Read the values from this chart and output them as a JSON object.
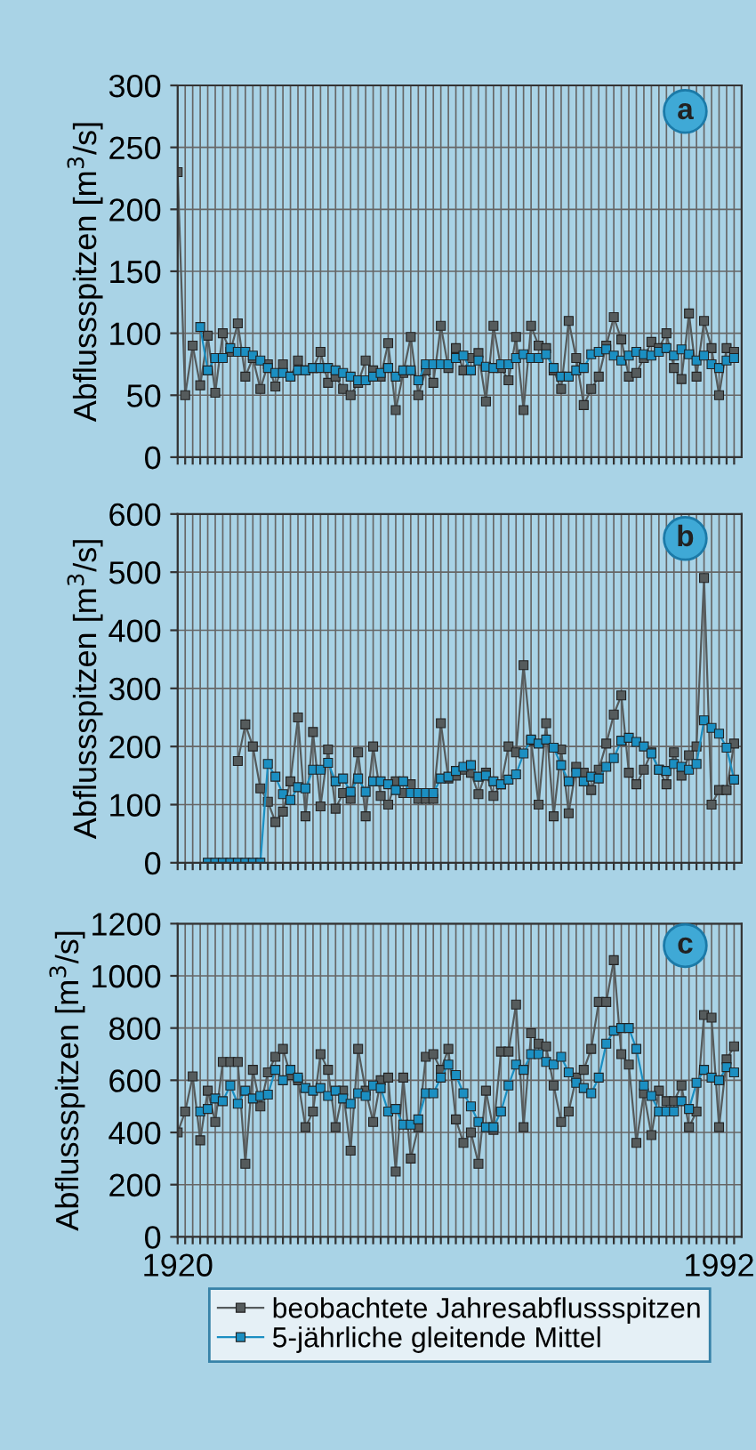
{
  "chart_data": [
    {
      "type": "line",
      "annotations": [
        "a"
      ],
      "ylabel": "Abflussspitzen [m$^{3}$/s]",
      "marker": "square",
      "grid": true,
      "tick_labels": "y",
      "legend": false,
      "xlim": [
        1920,
        1995
      ],
      "xticks": [
        1920,
        1921,
        1922,
        1923,
        1924,
        1925,
        1926,
        1927,
        1928,
        1929,
        1930,
        1931,
        1932,
        1933,
        1934,
        1935,
        1936,
        1937,
        1938,
        1939,
        1940,
        1941,
        1942,
        1943,
        1944,
        1945,
        1946,
        1947,
        1948,
        1949,
        1950,
        1951,
        1952,
        1953,
        1954,
        1955,
        1956,
        1957,
        1958,
        1959,
        1960,
        1961,
        1962,
        1963,
        1964,
        1965,
        1966,
        1967,
        1968,
        1969,
        1970,
        1971,
        1972,
        1973,
        1974,
        1975,
        1976,
        1977,
        1978,
        1979,
        1980,
        1981,
        1982,
        1983,
        1984,
        1985,
        1986,
        1987,
        1988,
        1989,
        1990,
        1991,
        1992,
        1993,
        1994
      ],
      "ylim": [
        0,
        300
      ],
      "yticks": [
        0,
        50,
        100,
        150,
        200,
        250,
        300
      ],
      "series": [
        {
          "color": "#555b5c",
          "x": [
            1920,
            1921,
            1922,
            1923,
            1924,
            1925,
            1926,
            1927,
            1928,
            1929,
            1930,
            1931,
            1932,
            1933,
            1934,
            1935,
            1936,
            1937,
            1938,
            1939,
            1940,
            1941,
            1942,
            1943,
            1944,
            1945,
            1946,
            1947,
            1948,
            1949,
            1950,
            1951,
            1952,
            1953,
            1954,
            1955,
            1956,
            1957,
            1958,
            1959,
            1960,
            1961,
            1962,
            1963,
            1964,
            1965,
            1966,
            1967,
            1968,
            1969,
            1970,
            1971,
            1972,
            1973,
            1974,
            1975,
            1976,
            1977,
            1978,
            1979,
            1980,
            1981,
            1982,
            1983,
            1984,
            1985,
            1986,
            1987,
            1988,
            1989,
            1990,
            1991,
            1992,
            1993,
            1994
          ],
          "values": [
            230,
            50,
            90,
            58,
            98,
            52,
            100,
            85,
            108,
            65,
            80,
            55,
            75,
            57,
            75,
            65,
            78,
            70,
            72,
            85,
            60,
            65,
            55,
            50,
            60,
            78,
            70,
            65,
            92,
            38,
            68,
            97,
            50,
            70,
            60,
            106,
            72,
            88,
            70,
            80,
            84,
            45,
            106,
            72,
            62,
            97,
            38,
            106,
            90,
            88,
            70,
            55,
            110,
            80,
            42,
            55,
            65,
            90,
            113,
            95,
            65,
            68,
            80,
            93,
            88,
            100,
            72,
            63,
            116,
            65,
            110,
            88,
            50,
            88,
            85
          ]
        },
        {
          "color": "#1b8fc2",
          "x": [
            1923,
            1924,
            1925,
            1926,
            1927,
            1928,
            1929,
            1930,
            1931,
            1932,
            1933,
            1934,
            1935,
            1936,
            1937,
            1938,
            1939,
            1940,
            1941,
            1942,
            1943,
            1944,
            1945,
            1946,
            1947,
            1948,
            1949,
            1950,
            1951,
            1952,
            1953,
            1954,
            1955,
            1956,
            1957,
            1958,
            1959,
            1960,
            1961,
            1962,
            1963,
            1964,
            1965,
            1966,
            1967,
            1968,
            1969,
            1970,
            1971,
            1972,
            1973,
            1974,
            1975,
            1976,
            1977,
            1978,
            1979,
            1980,
            1981,
            1982,
            1983,
            1984,
            1985,
            1986,
            1987,
            1988,
            1989,
            1990,
            1991,
            1992,
            1993,
            1994
          ],
          "values": [
            105,
            70,
            80,
            80,
            88,
            85,
            85,
            82,
            78,
            72,
            68,
            68,
            65,
            70,
            70,
            72,
            72,
            72,
            70,
            68,
            65,
            62,
            62,
            65,
            68,
            72,
            65,
            70,
            70,
            62,
            75,
            75,
            75,
            75,
            80,
            82,
            70,
            78,
            73,
            72,
            75,
            75,
            80,
            83,
            80,
            80,
            83,
            72,
            65,
            65,
            70,
            72,
            83,
            85,
            87,
            82,
            78,
            82,
            85,
            83,
            82,
            85,
            88,
            82,
            87,
            83,
            78,
            82,
            75,
            72,
            78,
            80
          ]
        }
      ]
    },
    {
      "type": "line",
      "annotations": [
        "b"
      ],
      "ylabel": "Abflussspitzen [m$^{3}$/s]",
      "marker": "square",
      "grid": true,
      "tick_labels": "y",
      "legend": false,
      "xlim": [
        1920,
        1995
      ],
      "xticks": [
        1920,
        1921,
        1922,
        1923,
        1924,
        1925,
        1926,
        1927,
        1928,
        1929,
        1930,
        1931,
        1932,
        1933,
        1934,
        1935,
        1936,
        1937,
        1938,
        1939,
        1940,
        1941,
        1942,
        1943,
        1944,
        1945,
        1946,
        1947,
        1948,
        1949,
        1950,
        1951,
        1952,
        1953,
        1954,
        1955,
        1956,
        1957,
        1958,
        1959,
        1960,
        1961,
        1962,
        1963,
        1964,
        1965,
        1966,
        1967,
        1968,
        1969,
        1970,
        1971,
        1972,
        1973,
        1974,
        1975,
        1976,
        1977,
        1978,
        1979,
        1980,
        1981,
        1982,
        1983,
        1984,
        1985,
        1986,
        1987,
        1988,
        1989,
        1990,
        1991,
        1992,
        1993,
        1994
      ],
      "ylim": [
        0,
        600
      ],
      "yticks": [
        0,
        100,
        200,
        300,
        400,
        500,
        600
      ],
      "series": [
        {
          "color": "#555b5c",
          "x": [
            1928,
            1929,
            1930,
            1931,
            1932,
            1933,
            1934,
            1935,
            1936,
            1937,
            1938,
            1939,
            1940,
            1941,
            1942,
            1943,
            1944,
            1945,
            1946,
            1947,
            1948,
            1949,
            1950,
            1951,
            1952,
            1953,
            1954,
            1955,
            1956,
            1957,
            1958,
            1959,
            1960,
            1961,
            1962,
            1963,
            1964,
            1965,
            1966,
            1967,
            1968,
            1969,
            1970,
            1971,
            1972,
            1973,
            1974,
            1975,
            1976,
            1977,
            1978,
            1979,
            1980,
            1981,
            1982,
            1983,
            1984,
            1985,
            1986,
            1987,
            1988,
            1989,
            1990,
            1991,
            1992,
            1993,
            1994
          ],
          "values": [
            175,
            238,
            200,
            128,
            105,
            70,
            88,
            140,
            250,
            80,
            225,
            97,
            195,
            93,
            120,
            110,
            190,
            80,
            200,
            115,
            100,
            140,
            120,
            135,
            110,
            110,
            110,
            240,
            145,
            150,
            160,
            155,
            118,
            155,
            115,
            135,
            200,
            190,
            340,
            210,
            100,
            240,
            80,
            195,
            85,
            165,
            155,
            125,
            160,
            205,
            255,
            288,
            155,
            135,
            160,
            190,
            160,
            135,
            190,
            150,
            185,
            200,
            490,
            100,
            125,
            125,
            205
          ]
        },
        {
          "color": "#1b8fc2",
          "x": [
            1924,
            1925,
            1926,
            1927,
            1928,
            1929,
            1930,
            1931,
            1932,
            1933,
            1934,
            1935,
            1936,
            1937,
            1938,
            1939,
            1940,
            1941,
            1942,
            1943,
            1944,
            1945,
            1946,
            1947,
            1948,
            1949,
            1950,
            1951,
            1952,
            1953,
            1954,
            1955,
            1956,
            1957,
            1958,
            1959,
            1960,
            1961,
            1962,
            1963,
            1964,
            1965,
            1966,
            1967,
            1968,
            1969,
            1970,
            1971,
            1972,
            1973,
            1974,
            1975,
            1976,
            1977,
            1978,
            1979,
            1980,
            1981,
            1982,
            1983,
            1984,
            1985,
            1986,
            1987,
            1988,
            1989,
            1990,
            1991,
            1992,
            1993,
            1994
          ],
          "values": [
            0,
            0,
            0,
            0,
            0,
            0,
            0,
            0,
            170,
            148,
            118,
            108,
            130,
            128,
            160,
            160,
            172,
            140,
            145,
            122,
            145,
            122,
            140,
            140,
            135,
            125,
            140,
            120,
            120,
            120,
            120,
            145,
            148,
            158,
            165,
            168,
            148,
            150,
            140,
            135,
            143,
            152,
            188,
            212,
            205,
            212,
            198,
            168,
            140,
            155,
            140,
            148,
            145,
            165,
            180,
            210,
            215,
            208,
            200,
            188,
            160,
            158,
            170,
            165,
            160,
            170,
            245,
            232,
            222,
            198,
            143
          ]
        }
      ]
    },
    {
      "type": "line",
      "annotations": [
        "c"
      ],
      "ylabel": "Abflussspitzen [m$^{3}$/s]",
      "marker": "square",
      "grid": true,
      "legend": "bottom",
      "xlim": [
        1920,
        1995
      ],
      "xticks": [
        1920,
        {
          "value": 1921,
          "label": null
        },
        {
          "value": 1922,
          "label": null
        },
        {
          "value": 1923,
          "label": null
        },
        {
          "value": 1924,
          "label": null
        },
        {
          "value": 1925,
          "label": null
        },
        {
          "value": 1926,
          "label": null
        },
        {
          "value": 1927,
          "label": null
        },
        {
          "value": 1928,
          "label": null
        },
        {
          "value": 1929,
          "label": null
        },
        {
          "value": 1930,
          "label": null
        },
        {
          "value": 1931,
          "label": null
        },
        {
          "value": 1932,
          "label": null
        },
        {
          "value": 1933,
          "label": null
        },
        {
          "value": 1934,
          "label": null
        },
        {
          "value": 1935,
          "label": null
        },
        {
          "value": 1936,
          "label": null
        },
        {
          "value": 1937,
          "label": null
        },
        {
          "value": 1938,
          "label": null
        },
        {
          "value": 1939,
          "label": null
        },
        {
          "value": 1940,
          "label": null
        },
        {
          "value": 1941,
          "label": null
        },
        {
          "value": 1942,
          "label": null
        },
        {
          "value": 1943,
          "label": null
        },
        {
          "value": 1944,
          "label": null
        },
        {
          "value": 1945,
          "label": null
        },
        {
          "value": 1946,
          "label": null
        },
        {
          "value": 1947,
          "label": null
        },
        {
          "value": 1948,
          "label": null
        },
        {
          "value": 1949,
          "label": null
        },
        {
          "value": 1950,
          "label": null
        },
        {
          "value": 1951,
          "label": null
        },
        {
          "value": 1952,
          "label": null
        },
        {
          "value": 1953,
          "label": null
        },
        {
          "value": 1954,
          "label": null
        },
        {
          "value": 1955,
          "label": null
        },
        {
          "value": 1956,
          "label": null
        },
        {
          "value": 1957,
          "label": null
        },
        {
          "value": 1958,
          "label": null
        },
        {
          "value": 1959,
          "label": null
        },
        {
          "value": 1960,
          "label": null
        },
        {
          "value": 1961,
          "label": null
        },
        {
          "value": 1962,
          "label": null
        },
        {
          "value": 1963,
          "label": null
        },
        {
          "value": 1964,
          "label": null
        },
        {
          "value": 1965,
          "label": null
        },
        {
          "value": 1966,
          "label": null
        },
        {
          "value": 1967,
          "label": null
        },
        {
          "value": 1968,
          "label": null
        },
        {
          "value": 1969,
          "label": null
        },
        {
          "value": 1970,
          "label": null
        },
        {
          "value": 1971,
          "label": null
        },
        {
          "value": 1972,
          "label": null
        },
        {
          "value": 1973,
          "label": null
        },
        {
          "value": 1974,
          "label": null
        },
        {
          "value": 1975,
          "label": null
        },
        {
          "value": 1976,
          "label": null
        },
        {
          "value": 1977,
          "label": null
        },
        {
          "value": 1978,
          "label": null
        },
        {
          "value": 1979,
          "label": null
        },
        {
          "value": 1980,
          "label": null
        },
        {
          "value": 1981,
          "label": null
        },
        {
          "value": 1982,
          "label": null
        },
        {
          "value": 1983,
          "label": null
        },
        {
          "value": 1984,
          "label": null
        },
        {
          "value": 1985,
          "label": null
        },
        {
          "value": 1986,
          "label": null
        },
        {
          "value": 1987,
          "label": null
        },
        {
          "value": 1988,
          "label": null
        },
        {
          "value": 1989,
          "label": null
        },
        {
          "value": 1990,
          "label": null
        },
        {
          "value": 1991,
          "label": null
        },
        1992,
        {
          "value": 1993,
          "label": null
        },
        {
          "value": 1994,
          "label": null
        }
      ],
      "ylim": [
        0,
        1200
      ],
      "yticks": [
        0,
        200,
        400,
        600,
        800,
        1000,
        1200
      ],
      "series": [
        {
          "name": "beobachtete Jahresabflussspitzen",
          "color": "#555b5c",
          "x": [
            1920,
            1921,
            1922,
            1923,
            1924,
            1925,
            1926,
            1927,
            1928,
            1929,
            1930,
            1931,
            1932,
            1933,
            1934,
            1935,
            1936,
            1937,
            1938,
            1939,
            1940,
            1941,
            1942,
            1943,
            1944,
            1945,
            1946,
            1947,
            1948,
            1949,
            1950,
            1951,
            1952,
            1953,
            1954,
            1955,
            1956,
            1957,
            1958,
            1959,
            1960,
            1961,
            1962,
            1963,
            1964,
            1965,
            1966,
            1967,
            1968,
            1969,
            1970,
            1971,
            1972,
            1973,
            1974,
            1975,
            1976,
            1977,
            1978,
            1979,
            1980,
            1981,
            1982,
            1983,
            1984,
            1985,
            1986,
            1987,
            1988,
            1989,
            1990,
            1991,
            1992,
            1993,
            1994
          ],
          "values": [
            400,
            480,
            615,
            370,
            560,
            440,
            670,
            670,
            670,
            280,
            640,
            500,
            630,
            690,
            720,
            620,
            600,
            420,
            480,
            700,
            640,
            420,
            560,
            330,
            720,
            560,
            440,
            600,
            610,
            250,
            610,
            300,
            420,
            690,
            700,
            640,
            720,
            450,
            360,
            400,
            280,
            560,
            410,
            710,
            710,
            890,
            420,
            780,
            740,
            730,
            580,
            440,
            480,
            610,
            640,
            720,
            900,
            900,
            1060,
            700,
            660,
            360,
            550,
            390,
            560,
            520,
            520,
            580,
            420,
            480,
            850,
            840,
            420,
            680,
            730
          ]
        },
        {
          "name": "5-jährliche gleitende Mittel",
          "color": "#1b8fc2",
          "x": [
            1923,
            1924,
            1925,
            1926,
            1927,
            1928,
            1929,
            1930,
            1931,
            1932,
            1933,
            1934,
            1935,
            1936,
            1937,
            1938,
            1939,
            1940,
            1941,
            1942,
            1943,
            1944,
            1945,
            1946,
            1947,
            1948,
            1949,
            1950,
            1951,
            1952,
            1953,
            1954,
            1955,
            1956,
            1957,
            1958,
            1959,
            1960,
            1961,
            1962,
            1963,
            1964,
            1965,
            1966,
            1967,
            1968,
            1969,
            1970,
            1971,
            1972,
            1973,
            1974,
            1975,
            1976,
            1977,
            1978,
            1979,
            1980,
            1981,
            1982,
            1983,
            1984,
            1985,
            1986,
            1987,
            1988,
            1989,
            1990,
            1991,
            1992,
            1993,
            1994
          ],
          "values": [
            480,
            490,
            530,
            520,
            580,
            510,
            560,
            530,
            540,
            545,
            640,
            600,
            640,
            610,
            570,
            560,
            570,
            540,
            560,
            530,
            510,
            550,
            540,
            580,
            570,
            480,
            490,
            430,
            430,
            450,
            550,
            550,
            610,
            660,
            620,
            550,
            500,
            440,
            420,
            420,
            480,
            580,
            660,
            640,
            700,
            700,
            670,
            660,
            690,
            630,
            590,
            570,
            550,
            610,
            740,
            790,
            800,
            800,
            720,
            580,
            540,
            480,
            480,
            480,
            520,
            490,
            590,
            640,
            610,
            600,
            650,
            630
          ]
        }
      ]
    }
  ]
}
